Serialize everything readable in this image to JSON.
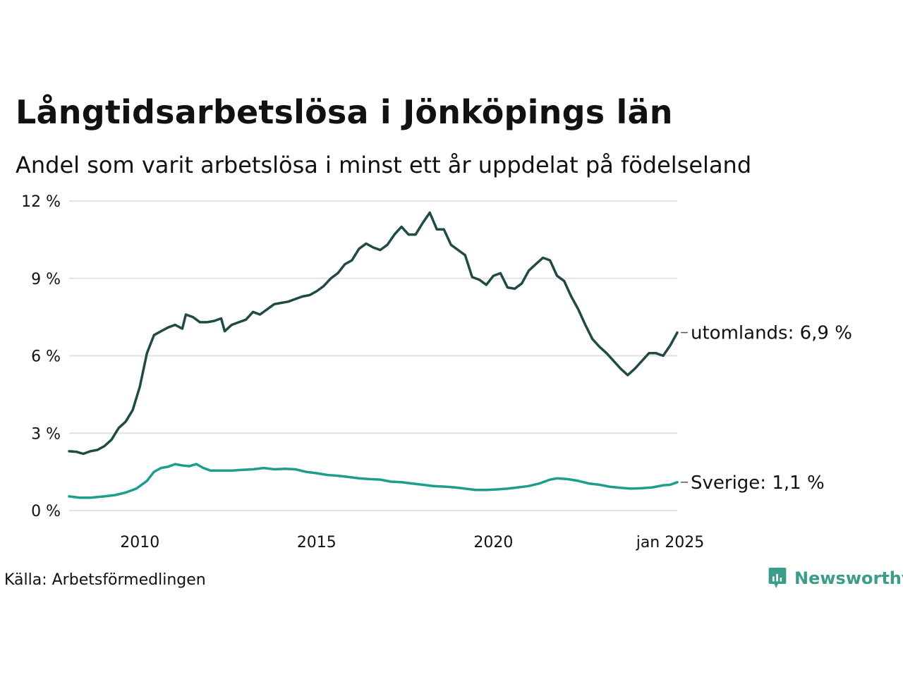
{
  "title": "Långtidsarbetslösa i Jönköpings län",
  "subtitle": "Andel som varit arbetslösa i minst ett år uppdelat på födelseland",
  "source": "Källa: Arbetsförmedlingen",
  "logo_text": "Newsworthy",
  "colors": {
    "utomlands": "#1f4a45",
    "sverige": "#1d9e8c",
    "grid": "#e2e2e2",
    "logo": "#3b9c8a"
  },
  "logo_icon": "bar-chart-speech-bubble-icon",
  "chart_data": {
    "type": "line",
    "xlim": [
      2008.0,
      2025.0
    ],
    "ylim": [
      0,
      12
    ],
    "y_ticks": [
      {
        "value": 0,
        "label": "0 %"
      },
      {
        "value": 3,
        "label": "3 %"
      },
      {
        "value": 6,
        "label": "6 %"
      },
      {
        "value": 9,
        "label": "9 %"
      },
      {
        "value": 12,
        "label": "12 %"
      }
    ],
    "x_ticks": [
      {
        "value": 2010,
        "label": "2010"
      },
      {
        "value": 2015,
        "label": "2015"
      },
      {
        "value": 2020,
        "label": "2020"
      },
      {
        "value": 2025,
        "label": "jan 2025"
      }
    ],
    "grid": true,
    "series": [
      {
        "name": "utomlands",
        "end_label": "utomlands: 6,9 %",
        "points": [
          [
            2008.0,
            2.3
          ],
          [
            2008.2,
            2.28
          ],
          [
            2008.4,
            2.2
          ],
          [
            2008.6,
            2.3
          ],
          [
            2008.8,
            2.35
          ],
          [
            2009.0,
            2.5
          ],
          [
            2009.2,
            2.75
          ],
          [
            2009.4,
            3.2
          ],
          [
            2009.6,
            3.45
          ],
          [
            2009.8,
            3.9
          ],
          [
            2010.0,
            4.8
          ],
          [
            2010.2,
            6.1
          ],
          [
            2010.4,
            6.8
          ],
          [
            2010.6,
            6.95
          ],
          [
            2010.8,
            7.1
          ],
          [
            2011.0,
            7.2
          ],
          [
            2011.2,
            7.05
          ],
          [
            2011.3,
            7.6
          ],
          [
            2011.5,
            7.5
          ],
          [
            2011.7,
            7.3
          ],
          [
            2011.9,
            7.3
          ],
          [
            2012.1,
            7.35
          ],
          [
            2012.3,
            7.45
          ],
          [
            2012.4,
            6.95
          ],
          [
            2012.6,
            7.2
          ],
          [
            2012.8,
            7.3
          ],
          [
            2013.0,
            7.4
          ],
          [
            2013.2,
            7.7
          ],
          [
            2013.4,
            7.6
          ],
          [
            2013.6,
            7.8
          ],
          [
            2013.8,
            8.0
          ],
          [
            2014.0,
            8.05
          ],
          [
            2014.2,
            8.1
          ],
          [
            2014.4,
            8.2
          ],
          [
            2014.6,
            8.3
          ],
          [
            2014.8,
            8.35
          ],
          [
            2015.0,
            8.5
          ],
          [
            2015.2,
            8.7
          ],
          [
            2015.4,
            9.0
          ],
          [
            2015.6,
            9.2
          ],
          [
            2015.8,
            9.55
          ],
          [
            2016.0,
            9.7
          ],
          [
            2016.2,
            10.15
          ],
          [
            2016.4,
            10.35
          ],
          [
            2016.6,
            10.2
          ],
          [
            2016.8,
            10.1
          ],
          [
            2017.0,
            10.3
          ],
          [
            2017.2,
            10.7
          ],
          [
            2017.4,
            11.0
          ],
          [
            2017.6,
            10.7
          ],
          [
            2017.8,
            10.7
          ],
          [
            2018.0,
            11.15
          ],
          [
            2018.2,
            11.55
          ],
          [
            2018.4,
            10.9
          ],
          [
            2018.6,
            10.9
          ],
          [
            2018.8,
            10.3
          ],
          [
            2019.0,
            10.1
          ],
          [
            2019.2,
            9.9
          ],
          [
            2019.4,
            9.05
          ],
          [
            2019.6,
            8.95
          ],
          [
            2019.8,
            8.75
          ],
          [
            2020.0,
            9.1
          ],
          [
            2020.2,
            9.2
          ],
          [
            2020.4,
            8.65
          ],
          [
            2020.6,
            8.6
          ],
          [
            2020.8,
            8.8
          ],
          [
            2021.0,
            9.3
          ],
          [
            2021.2,
            9.55
          ],
          [
            2021.4,
            9.8
          ],
          [
            2021.6,
            9.7
          ],
          [
            2021.8,
            9.1
          ],
          [
            2022.0,
            8.9
          ],
          [
            2022.2,
            8.3
          ],
          [
            2022.4,
            7.8
          ],
          [
            2022.6,
            7.2
          ],
          [
            2022.8,
            6.65
          ],
          [
            2023.0,
            6.35
          ],
          [
            2023.2,
            6.1
          ],
          [
            2023.4,
            5.8
          ],
          [
            2023.6,
            5.5
          ],
          [
            2023.8,
            5.25
          ],
          [
            2024.0,
            5.5
          ],
          [
            2024.2,
            5.8
          ],
          [
            2024.4,
            6.1
          ],
          [
            2024.6,
            6.1
          ],
          [
            2024.8,
            6.0
          ],
          [
            2025.0,
            6.4
          ],
          [
            2025.2,
            6.9
          ]
        ]
      },
      {
        "name": "Sverige",
        "end_label": "Sverige: 1,1 %",
        "points": [
          [
            2008.0,
            0.55
          ],
          [
            2008.3,
            0.5
          ],
          [
            2008.6,
            0.5
          ],
          [
            2009.0,
            0.55
          ],
          [
            2009.3,
            0.6
          ],
          [
            2009.6,
            0.7
          ],
          [
            2009.9,
            0.85
          ],
          [
            2010.2,
            1.15
          ],
          [
            2010.4,
            1.5
          ],
          [
            2010.6,
            1.65
          ],
          [
            2010.8,
            1.7
          ],
          [
            2011.0,
            1.8
          ],
          [
            2011.2,
            1.75
          ],
          [
            2011.4,
            1.72
          ],
          [
            2011.6,
            1.8
          ],
          [
            2011.8,
            1.65
          ],
          [
            2012.0,
            1.55
          ],
          [
            2012.3,
            1.55
          ],
          [
            2012.6,
            1.55
          ],
          [
            2012.9,
            1.58
          ],
          [
            2013.2,
            1.6
          ],
          [
            2013.5,
            1.65
          ],
          [
            2013.8,
            1.6
          ],
          [
            2014.1,
            1.62
          ],
          [
            2014.4,
            1.6
          ],
          [
            2014.7,
            1.5
          ],
          [
            2015.0,
            1.45
          ],
          [
            2015.3,
            1.38
          ],
          [
            2015.6,
            1.35
          ],
          [
            2015.9,
            1.3
          ],
          [
            2016.2,
            1.25
          ],
          [
            2016.5,
            1.22
          ],
          [
            2016.8,
            1.2
          ],
          [
            2017.1,
            1.12
          ],
          [
            2017.4,
            1.1
          ],
          [
            2017.7,
            1.05
          ],
          [
            2018.0,
            1.0
          ],
          [
            2018.3,
            0.95
          ],
          [
            2018.6,
            0.93
          ],
          [
            2018.9,
            0.9
          ],
          [
            2019.2,
            0.85
          ],
          [
            2019.5,
            0.8
          ],
          [
            2019.8,
            0.8
          ],
          [
            2020.1,
            0.82
          ],
          [
            2020.4,
            0.85
          ],
          [
            2020.7,
            0.9
          ],
          [
            2021.0,
            0.95
          ],
          [
            2021.3,
            1.05
          ],
          [
            2021.6,
            1.2
          ],
          [
            2021.8,
            1.25
          ],
          [
            2022.1,
            1.22
          ],
          [
            2022.4,
            1.15
          ],
          [
            2022.7,
            1.05
          ],
          [
            2023.0,
            1.0
          ],
          [
            2023.3,
            0.92
          ],
          [
            2023.6,
            0.88
          ],
          [
            2023.9,
            0.85
          ],
          [
            2024.2,
            0.87
          ],
          [
            2024.5,
            0.9
          ],
          [
            2024.8,
            0.98
          ],
          [
            2025.0,
            1.0
          ],
          [
            2025.2,
            1.1
          ]
        ]
      }
    ]
  }
}
